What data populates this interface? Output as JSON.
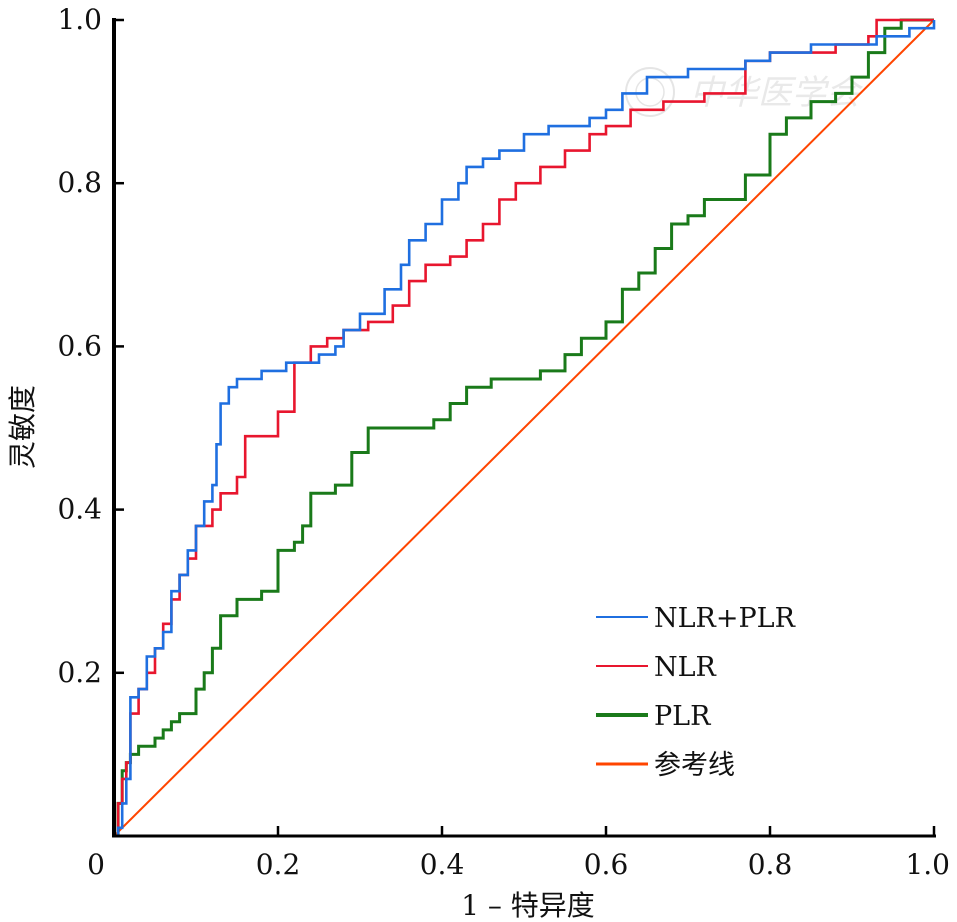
{
  "chart_data": {
    "type": "line",
    "xlabel": "1 – 特异度",
    "ylabel": "灵敏度",
    "xlim": [
      0,
      1
    ],
    "ylim": [
      0,
      1
    ],
    "x_ticks": [
      "0",
      "0.2",
      "0.4",
      "0.6",
      "0.8",
      "1.0"
    ],
    "y_ticks": [
      "0.2",
      "0.4",
      "0.6",
      "0.8",
      "1.0"
    ],
    "grid": false,
    "legend_position": "bottom-right",
    "watermark": "中华医学会",
    "series": [
      {
        "name": "NLR+PLR",
        "color": "#1f6fe0",
        "points": [
          [
            0,
            0
          ],
          [
            0.005,
            0.01
          ],
          [
            0.01,
            0.04
          ],
          [
            0.015,
            0.07
          ],
          [
            0.02,
            0.17
          ],
          [
            0.03,
            0.18
          ],
          [
            0.04,
            0.22
          ],
          [
            0.05,
            0.23
          ],
          [
            0.06,
            0.25
          ],
          [
            0.07,
            0.3
          ],
          [
            0.08,
            0.32
          ],
          [
            0.09,
            0.35
          ],
          [
            0.1,
            0.38
          ],
          [
            0.11,
            0.41
          ],
          [
            0.12,
            0.43
          ],
          [
            0.125,
            0.48
          ],
          [
            0.13,
            0.53
          ],
          [
            0.14,
            0.55
          ],
          [
            0.15,
            0.56
          ],
          [
            0.18,
            0.57
          ],
          [
            0.21,
            0.58
          ],
          [
            0.25,
            0.59
          ],
          [
            0.27,
            0.6
          ],
          [
            0.28,
            0.62
          ],
          [
            0.3,
            0.64
          ],
          [
            0.33,
            0.67
          ],
          [
            0.35,
            0.7
          ],
          [
            0.36,
            0.73
          ],
          [
            0.38,
            0.75
          ],
          [
            0.4,
            0.78
          ],
          [
            0.42,
            0.8
          ],
          [
            0.43,
            0.82
          ],
          [
            0.45,
            0.83
          ],
          [
            0.47,
            0.84
          ],
          [
            0.5,
            0.86
          ],
          [
            0.53,
            0.87
          ],
          [
            0.58,
            0.88
          ],
          [
            0.6,
            0.89
          ],
          [
            0.62,
            0.91
          ],
          [
            0.65,
            0.93
          ],
          [
            0.7,
            0.94
          ],
          [
            0.77,
            0.95
          ],
          [
            0.8,
            0.96
          ],
          [
            0.85,
            0.97
          ],
          [
            0.93,
            0.98
          ],
          [
            0.97,
            0.99
          ],
          [
            1,
            1
          ]
        ]
      },
      {
        "name": "NLR",
        "color": "#e8162e",
        "points": [
          [
            0,
            0
          ],
          [
            0.005,
            0.04
          ],
          [
            0.01,
            0.07
          ],
          [
            0.015,
            0.09
          ],
          [
            0.02,
            0.15
          ],
          [
            0.03,
            0.18
          ],
          [
            0.04,
            0.2
          ],
          [
            0.05,
            0.23
          ],
          [
            0.06,
            0.26
          ],
          [
            0.07,
            0.29
          ],
          [
            0.08,
            0.32
          ],
          [
            0.09,
            0.34
          ],
          [
            0.1,
            0.38
          ],
          [
            0.12,
            0.4
          ],
          [
            0.13,
            0.42
          ],
          [
            0.15,
            0.44
          ],
          [
            0.16,
            0.49
          ],
          [
            0.2,
            0.52
          ],
          [
            0.22,
            0.58
          ],
          [
            0.24,
            0.6
          ],
          [
            0.26,
            0.61
          ],
          [
            0.28,
            0.62
          ],
          [
            0.31,
            0.63
          ],
          [
            0.34,
            0.65
          ],
          [
            0.36,
            0.68
          ],
          [
            0.38,
            0.7
          ],
          [
            0.41,
            0.71
          ],
          [
            0.43,
            0.73
          ],
          [
            0.45,
            0.75
          ],
          [
            0.47,
            0.78
          ],
          [
            0.49,
            0.8
          ],
          [
            0.52,
            0.82
          ],
          [
            0.55,
            0.84
          ],
          [
            0.58,
            0.86
          ],
          [
            0.6,
            0.87
          ],
          [
            0.63,
            0.89
          ],
          [
            0.67,
            0.9
          ],
          [
            0.72,
            0.91
          ],
          [
            0.77,
            0.95
          ],
          [
            0.8,
            0.96
          ],
          [
            0.88,
            0.97
          ],
          [
            0.92,
            0.98
          ],
          [
            0.93,
            1
          ],
          [
            1,
            1
          ]
        ]
      },
      {
        "name": "PLR",
        "color": "#1a7a1a",
        "points": [
          [
            0,
            0
          ],
          [
            0.005,
            0.04
          ],
          [
            0.01,
            0.08
          ],
          [
            0.015,
            0.09
          ],
          [
            0.02,
            0.1
          ],
          [
            0.03,
            0.11
          ],
          [
            0.05,
            0.12
          ],
          [
            0.06,
            0.13
          ],
          [
            0.07,
            0.14
          ],
          [
            0.08,
            0.15
          ],
          [
            0.1,
            0.18
          ],
          [
            0.11,
            0.2
          ],
          [
            0.12,
            0.23
          ],
          [
            0.13,
            0.27
          ],
          [
            0.15,
            0.29
          ],
          [
            0.18,
            0.3
          ],
          [
            0.2,
            0.35
          ],
          [
            0.22,
            0.36
          ],
          [
            0.23,
            0.38
          ],
          [
            0.24,
            0.42
          ],
          [
            0.27,
            0.43
          ],
          [
            0.29,
            0.47
          ],
          [
            0.31,
            0.5
          ],
          [
            0.35,
            0.5
          ],
          [
            0.39,
            0.51
          ],
          [
            0.41,
            0.53
          ],
          [
            0.43,
            0.55
          ],
          [
            0.46,
            0.56
          ],
          [
            0.48,
            0.56
          ],
          [
            0.52,
            0.57
          ],
          [
            0.55,
            0.59
          ],
          [
            0.57,
            0.61
          ],
          [
            0.6,
            0.63
          ],
          [
            0.62,
            0.67
          ],
          [
            0.64,
            0.69
          ],
          [
            0.66,
            0.72
          ],
          [
            0.68,
            0.75
          ],
          [
            0.7,
            0.76
          ],
          [
            0.72,
            0.78
          ],
          [
            0.77,
            0.81
          ],
          [
            0.8,
            0.86
          ],
          [
            0.82,
            0.88
          ],
          [
            0.85,
            0.9
          ],
          [
            0.88,
            0.91
          ],
          [
            0.9,
            0.93
          ],
          [
            0.92,
            0.96
          ],
          [
            0.94,
            0.99
          ],
          [
            0.96,
            1
          ],
          [
            1,
            1
          ]
        ]
      },
      {
        "name": "参考线",
        "color": "#ff4500",
        "points": [
          [
            0,
            0
          ],
          [
            1,
            1
          ]
        ]
      }
    ]
  }
}
